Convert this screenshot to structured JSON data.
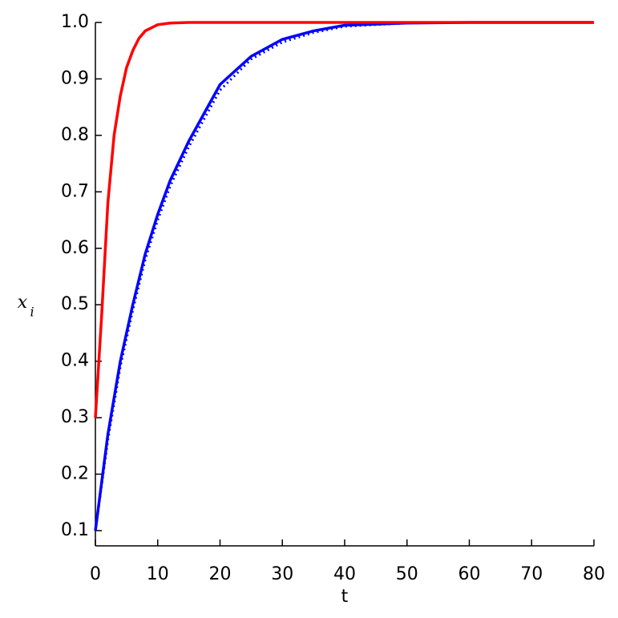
{
  "chart_data": {
    "type": "line",
    "xlabel": "t",
    "ylabel": "x",
    "ylabel_subscript": "i",
    "xlim": [
      0,
      80
    ],
    "xticks": [
      0,
      10,
      20,
      30,
      40,
      50,
      60,
      70,
      80
    ],
    "ylim": [
      0.073,
      1.0
    ],
    "yticks": [
      {
        "value": 0.1,
        "label": "0.1"
      },
      {
        "value": 0.2,
        "label": "0.2"
      },
      {
        "value": 0.3,
        "label": "0.3"
      },
      {
        "value": 0.4,
        "label": "0.4"
      },
      {
        "value": 0.5,
        "label": "0.5"
      },
      {
        "value": 0.6,
        "label": "0.6"
      },
      {
        "value": 0.7,
        "label": "0.7"
      },
      {
        "value": 0.8,
        "label": "0.8"
      },
      {
        "value": 0.9,
        "label": "0.9"
      },
      {
        "value": 1.0,
        "label": "1.0"
      }
    ],
    "series": [
      {
        "color": "#0000ff",
        "line_style": "dotted",
        "x": [
          0,
          2,
          4,
          6,
          8,
          10,
          12,
          15,
          20,
          25,
          30,
          35,
          40,
          50,
          60,
          80
        ],
        "values": [
          0.1,
          0.26,
          0.39,
          0.49,
          0.58,
          0.65,
          0.71,
          0.78,
          0.88,
          0.935,
          0.965,
          0.982,
          0.993,
          0.999,
          1.0,
          1.0
        ]
      },
      {
        "color": "#0000ff",
        "line_style": "solid",
        "x": [
          0,
          2,
          4,
          6,
          8,
          10,
          12,
          15,
          20,
          25,
          30,
          35,
          40,
          50,
          60,
          80
        ],
        "values": [
          0.1,
          0.27,
          0.4,
          0.5,
          0.59,
          0.66,
          0.72,
          0.79,
          0.89,
          0.94,
          0.97,
          0.985,
          0.995,
          0.999,
          1.0,
          1.0
        ]
      },
      {
        "color": "#ff0000",
        "line_style": "solid",
        "x": [
          0,
          1,
          2,
          3,
          4,
          5,
          6,
          7,
          8,
          10,
          12,
          15,
          20,
          40,
          80
        ],
        "values": [
          0.3,
          0.48,
          0.68,
          0.8,
          0.87,
          0.92,
          0.95,
          0.972,
          0.985,
          0.996,
          0.999,
          1.0,
          1.0,
          1.0,
          1.0
        ]
      }
    ]
  }
}
